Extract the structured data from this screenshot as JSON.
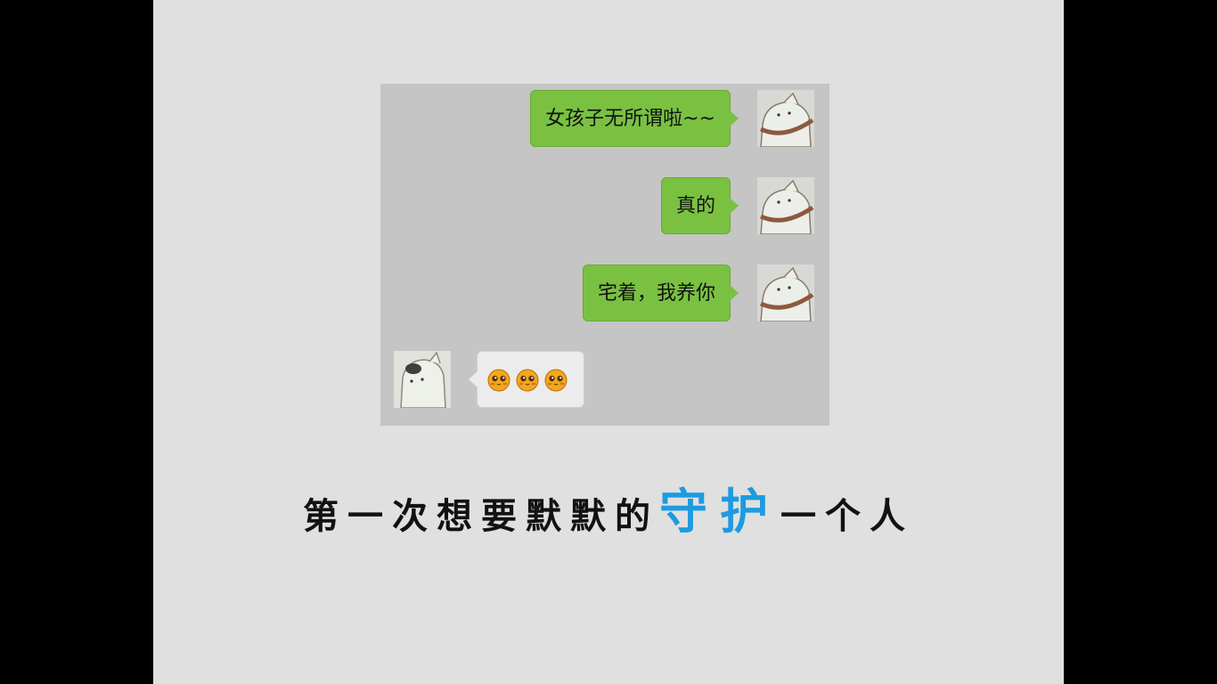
{
  "chat": {
    "messages": [
      {
        "side": "right",
        "text": "女孩子无所谓啦~~"
      },
      {
        "side": "right",
        "text": "真的"
      },
      {
        "side": "right",
        "text": "宅着，我养你"
      },
      {
        "side": "left",
        "emoji": [
          "cute-face-emoji",
          "cute-face-emoji",
          "cute-face-emoji"
        ]
      }
    ]
  },
  "caption": {
    "before": "第一次想要默默的",
    "highlight": "守护",
    "after": "一个人"
  },
  "colors": {
    "background_outer": "#000000",
    "slide": "#dfe0df",
    "chat_panel": "#c4c5c4",
    "sent_bubble": "#7ac142",
    "received_bubble": "#ececec",
    "highlight_text": "#1d9be0"
  }
}
